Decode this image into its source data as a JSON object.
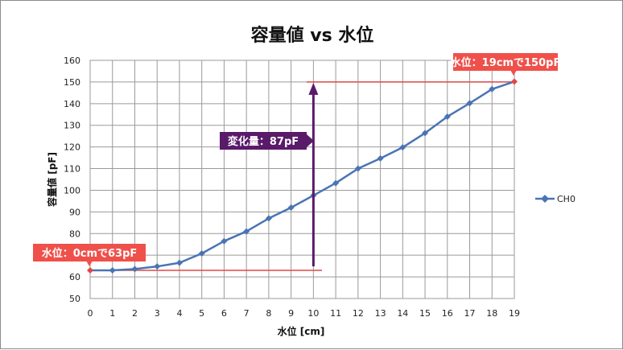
{
  "chart_data": {
    "type": "line",
    "title": "容量値 vs 水位",
    "xlabel": "水位 [cm]",
    "ylabel": "容量値 [pF]",
    "x": [
      0,
      1,
      2,
      3,
      4,
      5,
      6,
      7,
      8,
      9,
      10,
      11,
      12,
      13,
      14,
      15,
      16,
      17,
      18,
      19
    ],
    "xlim": [
      0,
      19
    ],
    "ylim": [
      50,
      160
    ],
    "yticks": [
      50,
      60,
      70,
      80,
      90,
      100,
      110,
      120,
      130,
      140,
      150,
      160
    ],
    "grid": true,
    "legend_position": "right",
    "series": [
      {
        "name": "CH0",
        "color": "#4a74b4",
        "values": [
          63.0,
          63.0,
          63.6,
          64.8,
          66.5,
          70.8,
          76.5,
          81.0,
          87.0,
          92.0,
          97.6,
          103.3,
          110.0,
          114.7,
          119.8,
          126.4,
          134.0,
          140.2,
          146.7,
          150.2
        ]
      }
    ],
    "annotations": {
      "start_label": "水位：0cmで63pF",
      "end_label": "水位：19cmで150pF",
      "change_label": "変化量：87pF",
      "start_value": 63,
      "end_value": 150,
      "arrow_x": 10,
      "callout_color": "#f0504a",
      "change_color": "#5a1a6a",
      "line_color": "#e04848"
    }
  }
}
